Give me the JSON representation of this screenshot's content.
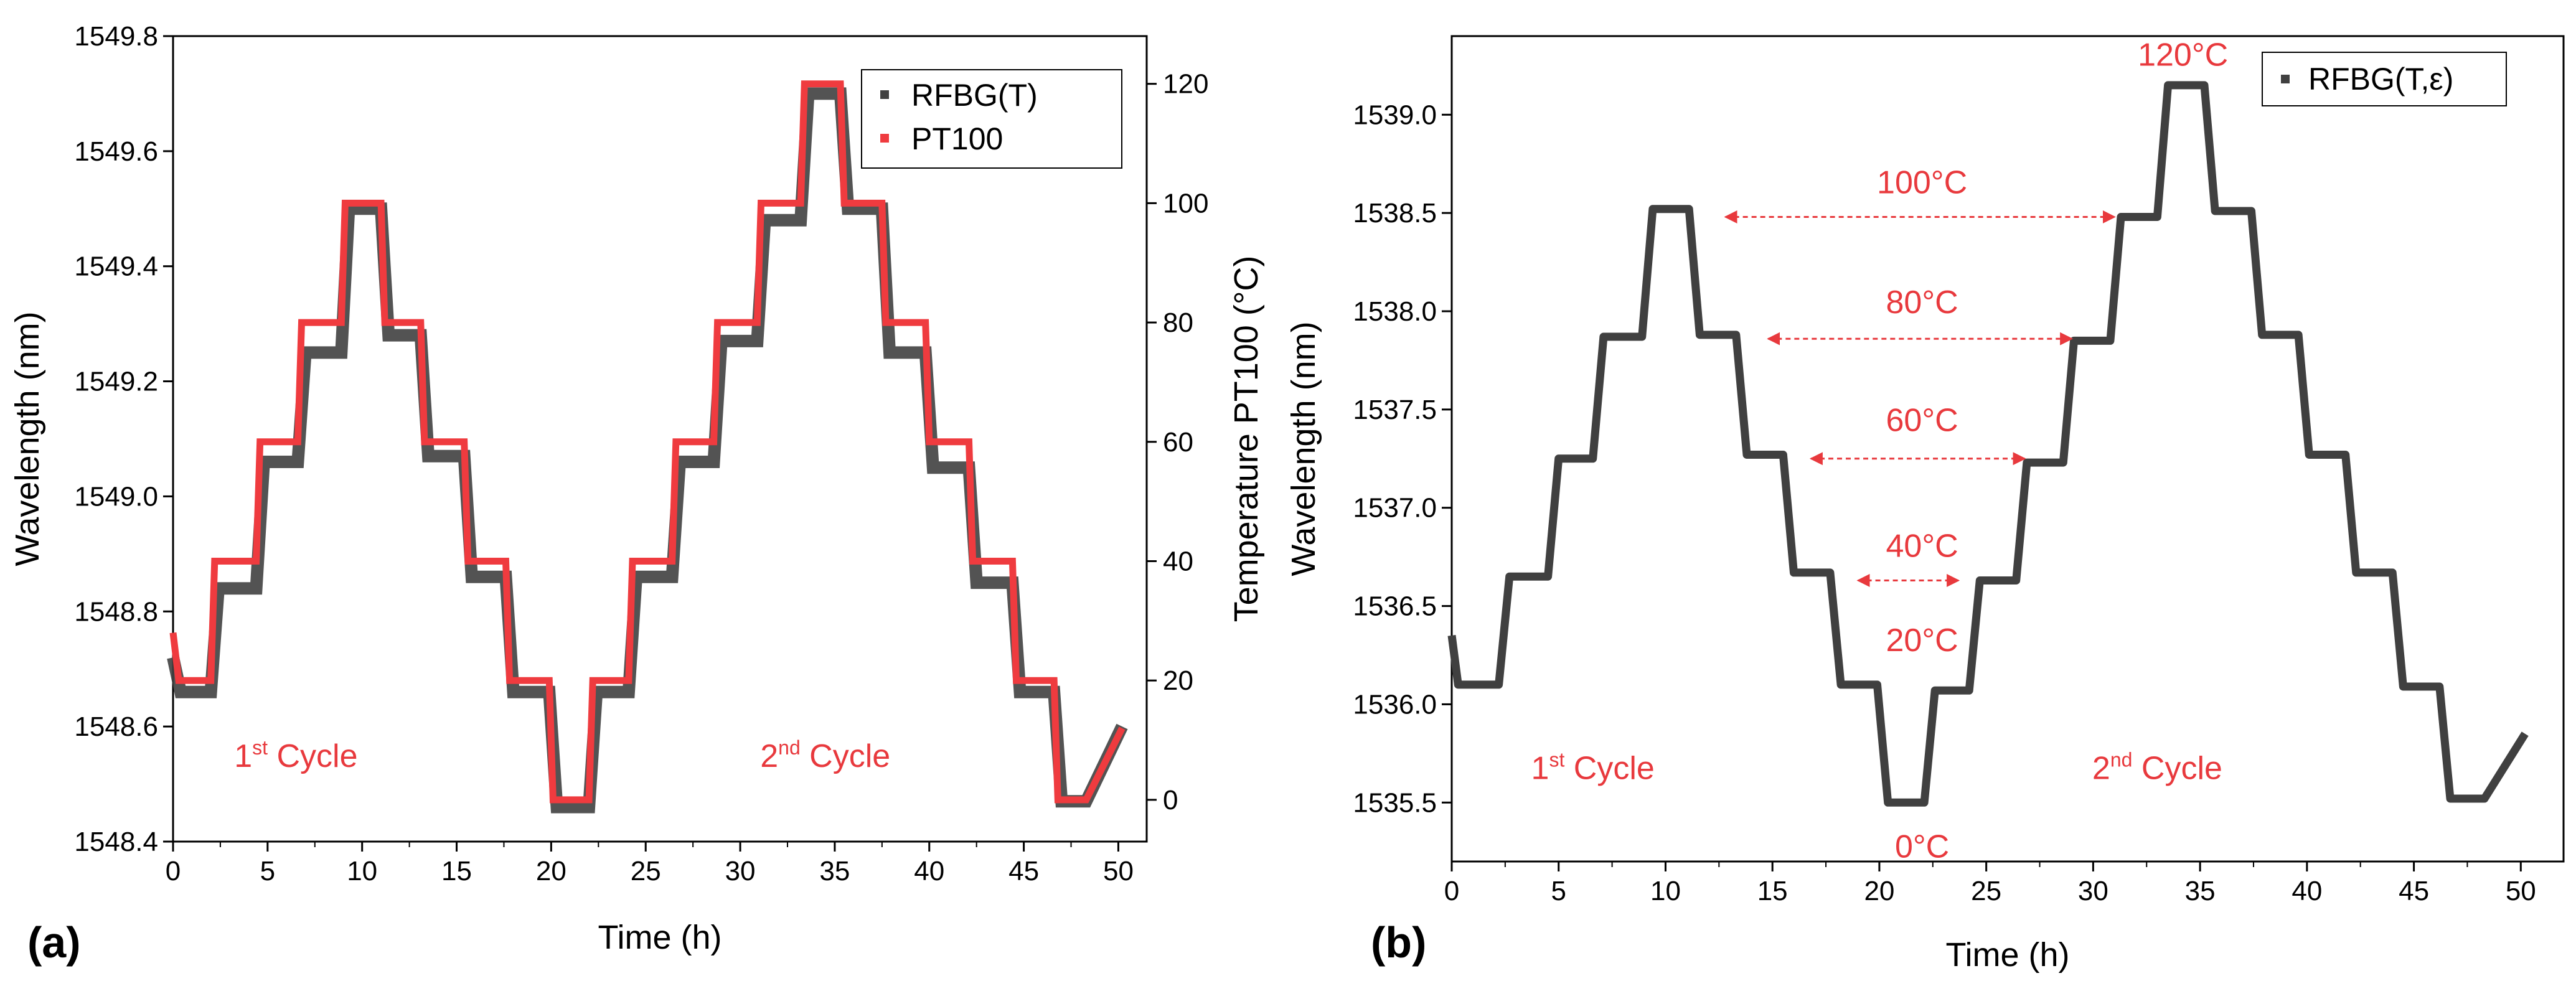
{
  "figure": {
    "labels": [
      "(a)",
      "(b)"
    ]
  },
  "colors": {
    "rfbg": "#404040",
    "pt100": "#ef3b3f",
    "annotation": "#e8393d"
  },
  "chart_data": [
    {
      "type": "line",
      "panel": "(a)",
      "xlabel": "Time (h)",
      "ylabel": "Wavelength (nm)",
      "y2label": "Temperature PT100 (°C)",
      "xlim": [
        0,
        51.5
      ],
      "ylim": [
        1548.4,
        1549.8
      ],
      "y2lim": [
        -7,
        128
      ],
      "xticks": [
        0,
        5,
        10,
        15,
        20,
        25,
        30,
        35,
        40,
        45,
        50
      ],
      "yticks": [
        1548.4,
        1548.6,
        1548.8,
        1549.0,
        1549.2,
        1549.4,
        1549.6,
        1549.8
      ],
      "y2ticks": [
        0,
        20,
        40,
        60,
        80,
        100,
        120
      ],
      "grid": false,
      "legend_position": "top-right",
      "legend": [
        "RFBG(T)",
        "PT100"
      ],
      "series": [
        {
          "name": "RFBG(T)",
          "axis": "left",
          "x": [
            0,
            0.4,
            2.0,
            2.4,
            4.4,
            4.8,
            6.6,
            7.0,
            8.9,
            9.3,
            11.0,
            11.4,
            13.1,
            13.5,
            15.4,
            15.8,
            17.6,
            18.0,
            19.9,
            20.3,
            22.0,
            22.4,
            24.1,
            24.5,
            26.4,
            26.8,
            28.6,
            29.0,
            30.9,
            31.3,
            33.2,
            33.6,
            35.3,
            35.7,
            37.5,
            37.9,
            39.8,
            40.2,
            42.1,
            42.5,
            44.4,
            44.8,
            46.6,
            47.0,
            48.3,
            50.2
          ],
          "values": [
            1548.72,
            1548.66,
            1548.66,
            1548.84,
            1548.84,
            1549.06,
            1549.06,
            1549.25,
            1549.25,
            1549.5,
            1549.5,
            1549.28,
            1549.28,
            1549.07,
            1549.07,
            1548.86,
            1548.86,
            1548.66,
            1548.66,
            1548.46,
            1548.46,
            1548.66,
            1548.66,
            1548.86,
            1548.86,
            1549.06,
            1549.06,
            1549.27,
            1549.27,
            1549.48,
            1549.48,
            1549.7,
            1549.7,
            1549.5,
            1549.5,
            1549.25,
            1549.25,
            1549.05,
            1549.05,
            1548.85,
            1548.85,
            1548.66,
            1548.66,
            1548.47,
            1548.47,
            1548.6
          ]
        },
        {
          "name": "PT100",
          "axis": "right",
          "x": [
            0,
            0.3,
            2.0,
            2.2,
            4.4,
            4.6,
            6.6,
            6.8,
            8.9,
            9.1,
            11.0,
            11.2,
            13.1,
            13.3,
            15.4,
            15.6,
            17.6,
            17.8,
            19.9,
            20.1,
            22.0,
            22.2,
            24.1,
            24.3,
            26.4,
            26.6,
            28.6,
            28.8,
            30.9,
            31.1,
            33.2,
            33.4,
            35.3,
            35.5,
            37.5,
            37.7,
            39.8,
            40.0,
            42.1,
            42.3,
            44.4,
            44.6,
            46.6,
            46.8,
            48.3,
            50.2
          ],
          "values": [
            28,
            20,
            20,
            40,
            40,
            60,
            60,
            80,
            80,
            100,
            100,
            80,
            80,
            60,
            60,
            40,
            40,
            20,
            20,
            0,
            0,
            20,
            20,
            40,
            40,
            60,
            60,
            80,
            80,
            100,
            100,
            120,
            120,
            100,
            100,
            80,
            80,
            60,
            60,
            40,
            40,
            20,
            20,
            0,
            0,
            12
          ]
        }
      ],
      "annotations": [
        {
          "text": "1",
          "sup": "st",
          "rest": " Cycle",
          "x": 6.5,
          "y": 1548.53
        },
        {
          "text": "2",
          "sup": "nd",
          "rest": " Cycle",
          "x": 34.5,
          "y": 1548.53
        }
      ]
    },
    {
      "type": "line",
      "panel": "(b)",
      "xlabel": "Time (h)",
      "ylabel": "Wavelength (nm)",
      "xlim": [
        0,
        52
      ],
      "ylim": [
        1535.2,
        1539.4
      ],
      "xticks": [
        0,
        5,
        10,
        15,
        20,
        25,
        30,
        35,
        40,
        45,
        50
      ],
      "yticks": [
        1535.5,
        1536.0,
        1536.5,
        1537.0,
        1537.5,
        1538.0,
        1538.5,
        1539.0
      ],
      "grid": false,
      "legend_position": "top-right",
      "legend": [
        "RFBG(T,ε)"
      ],
      "series": [
        {
          "name": "RFBG(T,ε)",
          "x": [
            0,
            0.3,
            2.2,
            2.7,
            4.5,
            5.0,
            6.6,
            7.1,
            8.9,
            9.4,
            11.1,
            11.6,
            13.3,
            13.8,
            15.5,
            16.0,
            17.7,
            18.2,
            19.9,
            20.4,
            22.1,
            22.6,
            24.2,
            24.7,
            26.4,
            26.9,
            28.6,
            29.1,
            30.8,
            31.3,
            33.0,
            33.5,
            35.2,
            35.7,
            37.4,
            37.9,
            39.6,
            40.1,
            41.8,
            42.3,
            44.0,
            44.5,
            46.2,
            46.7,
            48.3,
            50.2
          ],
          "values": [
            1536.35,
            1536.1,
            1536.1,
            1536.65,
            1536.65,
            1537.25,
            1537.25,
            1537.87,
            1537.87,
            1538.52,
            1538.52,
            1537.88,
            1537.88,
            1537.27,
            1537.27,
            1536.67,
            1536.67,
            1536.1,
            1536.1,
            1535.5,
            1535.5,
            1536.07,
            1536.07,
            1536.63,
            1536.63,
            1537.23,
            1537.23,
            1537.85,
            1537.85,
            1538.48,
            1538.48,
            1539.15,
            1539.15,
            1538.51,
            1538.51,
            1537.88,
            1537.88,
            1537.27,
            1537.27,
            1536.67,
            1536.67,
            1536.09,
            1536.09,
            1535.52,
            1535.52,
            1535.85
          ]
        }
      ],
      "temperature_labels": [
        {
          "text": "120°C",
          "x": 34.2,
          "y": 1539.25
        },
        {
          "text": "100°C",
          "x": 22.0,
          "y": 1538.6
        },
        {
          "text": "80°C",
          "x": 22.0,
          "y": 1537.99
        },
        {
          "text": "60°C",
          "x": 22.0,
          "y": 1537.39
        },
        {
          "text": "40°C",
          "x": 22.0,
          "y": 1536.75
        },
        {
          "text": "20°C",
          "x": 22.0,
          "y": 1536.27
        },
        {
          "text": "0°C",
          "x": 22.0,
          "y": 1535.22
        }
      ],
      "temperature_arrows": [
        {
          "label": "100°C",
          "x1": 12.8,
          "x2": 31.0,
          "y": 1538.48
        },
        {
          "label": "80°C",
          "x1": 14.8,
          "x2": 29.0,
          "y": 1537.86
        },
        {
          "label": "60°C",
          "x1": 16.8,
          "x2": 26.8,
          "y": 1537.25
        },
        {
          "label": "40°C",
          "x1": 19.0,
          "x2": 23.7,
          "y": 1536.63
        }
      ],
      "annotations": [
        {
          "text": "1",
          "sup": "st",
          "rest": " Cycle",
          "x": 6.6,
          "y": 1535.62
        },
        {
          "text": "2",
          "sup": "nd",
          "rest": " Cycle",
          "x": 33.0,
          "y": 1535.62
        }
      ]
    }
  ]
}
